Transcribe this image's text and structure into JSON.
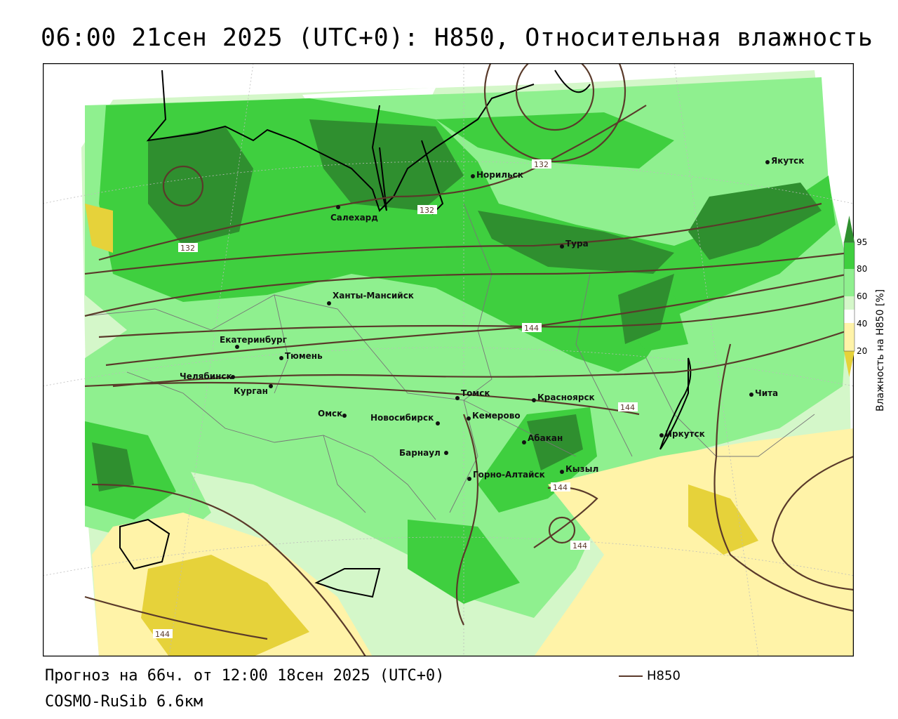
{
  "title": "06:00 21сен 2025 (UTC+0): H850, Относительная влажность",
  "footer": {
    "forecast": "Прогноз на 66ч. от 12:00 18сен 2025 (UTC+0)",
    "model": "COSMO-RuSib 6.6км"
  },
  "legend": {
    "contour_label": "H850",
    "colorbar_title": "Влажность на H850 [%]",
    "ticks": [
      "95",
      "80",
      "60",
      "40",
      "20"
    ]
  },
  "colors": {
    "humid_95": "#2f8f2f",
    "humid_80": "#3fcf3f",
    "humid_60": "#8ff08f",
    "humid_50": "#d4f7c9",
    "dry_40": "#fff3a8",
    "dry_20": "#e6d23a",
    "contour": "#5a3a2a",
    "coast": "#000000"
  },
  "contour_values": [
    "132",
    "132",
    "132",
    "144",
    "144",
    "144",
    "144",
    "144"
  ],
  "cities": [
    "Норильск",
    "Якутск",
    "Салехард",
    "Тура",
    "Ханты-Мансийск",
    "Екатеринбург",
    "Тюмень",
    "Челябинск",
    "Курган",
    "Томск",
    "Красноярск",
    "Чита",
    "Омск",
    "Новосибирск",
    "Кемерово",
    "Абакан",
    "Иркутск",
    "Барнаул",
    "Горно-Алтайск",
    "Кызыл"
  ]
}
